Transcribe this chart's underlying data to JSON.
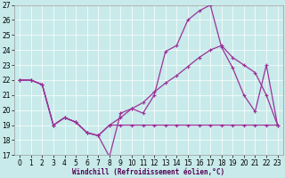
{
  "title": "",
  "xlabel": "Windchill (Refroidissement éolien,°C)",
  "bg_color": "#c8eaea",
  "grid_color": "#ffffff",
  "line_color": "#993399",
  "xlim_min": -0.5,
  "xlim_max": 23.5,
  "ylim_min": 17,
  "ylim_max": 27,
  "yticks": [
    17,
    18,
    19,
    20,
    21,
    22,
    23,
    24,
    25,
    26,
    27
  ],
  "xticks": [
    0,
    1,
    2,
    3,
    4,
    5,
    6,
    7,
    8,
    9,
    10,
    11,
    12,
    13,
    14,
    15,
    16,
    17,
    18,
    19,
    20,
    21,
    22,
    23
  ],
  "series1_x": [
    0,
    1,
    2,
    3,
    4,
    5,
    6,
    7,
    8,
    9,
    10,
    11,
    12,
    13,
    14,
    15,
    16,
    17,
    18,
    19,
    20,
    21,
    22,
    23
  ],
  "series1_y": [
    22.0,
    22.0,
    21.7,
    19.0,
    19.5,
    19.2,
    18.5,
    18.3,
    16.9,
    19.8,
    20.1,
    19.8,
    21.0,
    23.9,
    24.3,
    26.0,
    26.6,
    27.0,
    24.2,
    22.8,
    21.0,
    19.9,
    23.0,
    19.0
  ],
  "series2_x": [
    0,
    1,
    2,
    3,
    4,
    5,
    6,
    7,
    8,
    9,
    10,
    11,
    12,
    13,
    14,
    15,
    16,
    17,
    18,
    19,
    20,
    21,
    22,
    23
  ],
  "series2_y": [
    22.0,
    22.0,
    21.7,
    19.0,
    19.5,
    19.2,
    18.5,
    18.3,
    19.0,
    19.0,
    19.0,
    19.0,
    19.0,
    19.0,
    19.0,
    19.0,
    19.0,
    19.0,
    19.0,
    19.0,
    19.0,
    19.0,
    19.0,
    19.0
  ],
  "series3_x": [
    0,
    1,
    2,
    3,
    4,
    5,
    6,
    7,
    8,
    9,
    10,
    11,
    12,
    13,
    14,
    15,
    16,
    17,
    18,
    19,
    20,
    21,
    22,
    23
  ],
  "series3_y": [
    22.0,
    22.0,
    21.7,
    19.0,
    19.5,
    19.2,
    18.5,
    18.3,
    19.0,
    19.5,
    20.1,
    20.5,
    21.2,
    21.8,
    22.3,
    22.9,
    23.5,
    24.0,
    24.3,
    23.5,
    23.0,
    22.5,
    21.0,
    19.0
  ],
  "tick_labelsize": 5.5,
  "xlabel_fontsize": 5.5,
  "linewidth": 0.9,
  "markersize": 2.5
}
